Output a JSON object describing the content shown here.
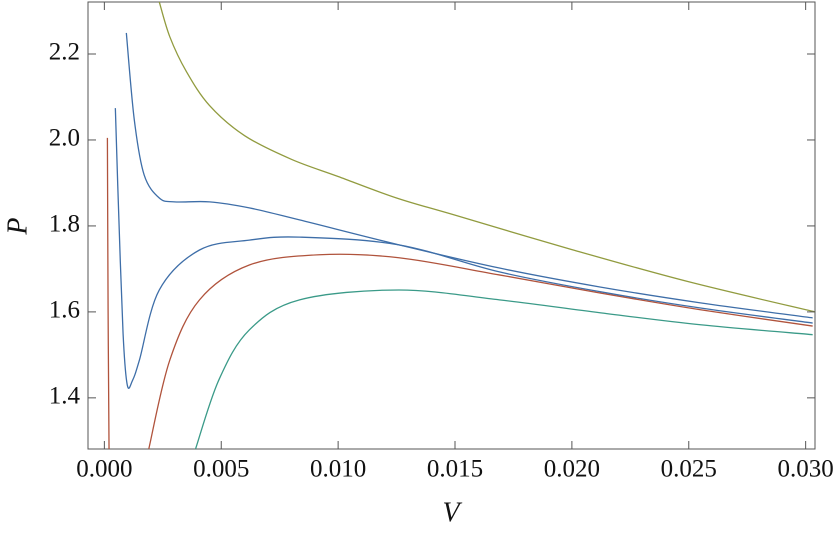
{
  "chart_data": {
    "type": "line",
    "xlabel": "V",
    "ylabel": "P",
    "xlim": [
      -0.0007,
      0.0304
    ],
    "ylim": [
      1.281,
      2.321
    ],
    "xticks": [
      {
        "value": 0,
        "label": "0.000"
      },
      {
        "value": 0.005,
        "label": "0.005"
      },
      {
        "value": 0.01,
        "label": "0.010"
      },
      {
        "value": 0.015,
        "label": "0.015"
      },
      {
        "value": 0.02,
        "label": "0.020"
      },
      {
        "value": 0.025,
        "label": "0.025"
      },
      {
        "value": 0.03,
        "label": "0.030"
      }
    ],
    "yticks": [
      1.4,
      1.6,
      1.8,
      {
        "value": 2.0,
        "label": "2.0"
      },
      2.2
    ],
    "series": [
      {
        "color": "#919b3f",
        "x": [
          0.00235,
          0.0028,
          0.0035,
          0.0045,
          0.006,
          0.008,
          0.01,
          0.0125,
          0.015,
          0.02,
          0.025,
          0.0304
        ],
        "values": [
          2.321,
          2.24,
          2.16,
          2.08,
          2.01,
          1.955,
          1.915,
          1.865,
          1.825,
          1.745,
          1.67,
          1.6
        ]
      },
      {
        "color": "#3e6ea8",
        "x": [
          0.00094,
          0.00128,
          0.0017,
          0.00235,
          0.003,
          0.0045,
          0.0062,
          0.00835,
          0.0126,
          0.0169,
          0.0212,
          0.0255,
          0.0303
        ],
        "values": [
          2.249,
          2.047,
          1.919,
          1.865,
          1.856,
          1.856,
          1.842,
          1.814,
          1.756,
          1.702,
          1.658,
          1.621,
          1.586
        ]
      },
      {
        "color": "#3e6ea8",
        "x": [
          0.00047,
          0.0006,
          0.0008,
          0.00098,
          0.0012,
          0.0015,
          0.00235,
          0.00407,
          0.0062,
          0.00835,
          0.0126,
          0.0169,
          0.0212,
          0.0255,
          0.0303
        ],
        "values": [
          2.074,
          1.85,
          1.55,
          1.43,
          1.44,
          1.488,
          1.651,
          1.744,
          1.767,
          1.774,
          1.756,
          1.693,
          1.647,
          1.609,
          1.574
        ]
      },
      {
        "color": "#b0533c",
        "x": [
          0.00013,
          0.00016,
          0.0002,
          null,
          0.0019,
          0.0028,
          0.00407,
          0.0062,
          0.0092,
          0.0126,
          0.0169,
          0.0212,
          0.0255,
          0.0303
        ],
        "values": [
          2.005,
          1.6,
          1.281,
          null,
          1.281,
          1.488,
          1.628,
          1.709,
          1.733,
          1.726,
          1.686,
          1.644,
          1.605,
          1.567
        ]
      },
      {
        "color": "#3a9a88",
        "x": [
          0.0039,
          0.0049,
          0.0062,
          0.00835,
          0.0126,
          0.0169,
          0.0212,
          0.0255,
          0.0303
        ],
        "values": [
          1.281,
          1.442,
          1.558,
          1.628,
          1.651,
          1.628,
          1.598,
          1.57,
          1.547
        ]
      }
    ]
  }
}
